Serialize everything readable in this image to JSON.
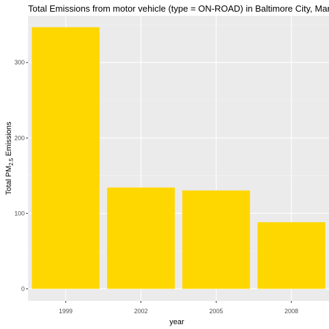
{
  "chart_data": {
    "type": "bar",
    "title": "Total Emissions from motor vehicle (type = ON-ROAD) in Baltimore City, Maryland",
    "xlabel": "year",
    "ylabel": {
      "prefix": "Total PM",
      "subscript": "2.5",
      "suffix": " Emissions"
    },
    "categories": [
      "1999",
      "2002",
      "2005",
      "2008"
    ],
    "values": [
      346.8,
      134.3,
      130.4,
      88.3
    ],
    "ylim": [
      -16,
      362
    ],
    "yticks": [
      0,
      100,
      200,
      300
    ],
    "grid": true,
    "colors": {
      "bar": "#FFD700",
      "panel": "#EBEBEB",
      "grid_major": "#FFFFFF",
      "grid_minor": "#F5F5F5",
      "tick": "#333333"
    }
  }
}
